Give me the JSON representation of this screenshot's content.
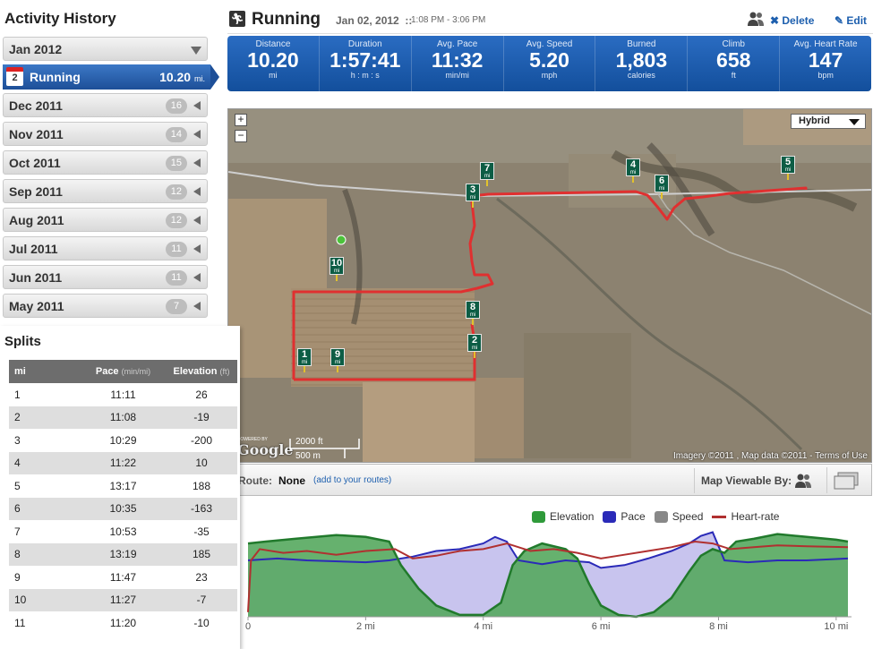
{
  "history": {
    "title": "Activity History",
    "selected_month": "Jan 2012",
    "selected_activity": {
      "day": "2",
      "name": "Running",
      "distance": "10.20",
      "unit": "mi."
    },
    "months": [
      {
        "label": "Dec 2011",
        "count": "16"
      },
      {
        "label": "Nov 2011",
        "count": "14"
      },
      {
        "label": "Oct 2011",
        "count": "15"
      },
      {
        "label": "Sep 2011",
        "count": "12"
      },
      {
        "label": "Aug 2011",
        "count": "12"
      },
      {
        "label": "Jul 2011",
        "count": "11"
      },
      {
        "label": "Jun 2011",
        "count": "11"
      },
      {
        "label": "May 2011",
        "count": "7"
      }
    ]
  },
  "splits": {
    "title": "Splits",
    "headers": {
      "mi": "mi",
      "pace": "Pace",
      "pace_unit": "(min/mi)",
      "elevation": "Elevation",
      "elevation_unit": "(ft)"
    },
    "rows": [
      {
        "mi": "1",
        "pace": "11:11",
        "elevation": "26"
      },
      {
        "mi": "2",
        "pace": "11:08",
        "elevation": "-19"
      },
      {
        "mi": "3",
        "pace": "10:29",
        "elevation": "-200"
      },
      {
        "mi": "4",
        "pace": "11:22",
        "elevation": "10"
      },
      {
        "mi": "5",
        "pace": "13:17",
        "elevation": "188"
      },
      {
        "mi": "6",
        "pace": "10:35",
        "elevation": "-163"
      },
      {
        "mi": "7",
        "pace": "10:53",
        "elevation": "-35"
      },
      {
        "mi": "8",
        "pace": "13:19",
        "elevation": "185"
      },
      {
        "mi": "9",
        "pace": "11:47",
        "elevation": "23"
      },
      {
        "mi": "10",
        "pace": "11:27",
        "elevation": "-7"
      },
      {
        "mi": "11",
        "pace": "11:20",
        "elevation": "-10"
      }
    ]
  },
  "header": {
    "title": "Running",
    "date": "Jan 02, 2012",
    "sep": "::",
    "time": "1:08 PM - 3:06 PM",
    "delete_label": "Delete",
    "edit_label": "Edit"
  },
  "stats": [
    {
      "label": "Distance",
      "value": "10.20",
      "unit": "mi"
    },
    {
      "label": "Duration",
      "value": "1:57:41",
      "unit": "h : m : s"
    },
    {
      "label": "Avg. Pace",
      "value": "11:32",
      "unit": "min/mi"
    },
    {
      "label": "Avg. Speed",
      "value": "5.20",
      "unit": "mph"
    },
    {
      "label": "Burned",
      "value": "1,803",
      "unit": "calories"
    },
    {
      "label": "Climb",
      "value": "658",
      "unit": "ft"
    },
    {
      "label": "Avg. Heart Rate",
      "value": "147",
      "unit": "bpm"
    }
  ],
  "map": {
    "type": "Hybrid",
    "attribution": "Imagery ©2011 , Map data ©2011 - Terms of Use",
    "powered": "POWERED BY",
    "google": "Google",
    "scale_ft": "2000 ft",
    "scale_m": "500 m",
    "marker_unit": "mi",
    "markers": [
      "1",
      "2",
      "3",
      "4",
      "5",
      "6",
      "7",
      "8",
      "9",
      "10"
    ],
    "route_color": "#e03030"
  },
  "route": {
    "label": "Route:",
    "value": "None",
    "add_link": "(add to your routes)",
    "viewable_label": "Map Viewable By:"
  },
  "chart_data": {
    "type": "area",
    "series": [
      {
        "name": "Elevation",
        "color": "#2f9a3a"
      },
      {
        "name": "Pace",
        "color": "#2a2ab8"
      },
      {
        "name": "Speed",
        "color": "#888888"
      },
      {
        "name": "Heart-rate",
        "color": "#b03030"
      }
    ],
    "xlabel": "",
    "xticks": [
      "0",
      "2 mi",
      "4 mi",
      "6 mi",
      "8 mi",
      "10 mi"
    ],
    "xlim": [
      0,
      10.2
    ],
    "elevation": {
      "x": [
        0,
        0.3,
        0.8,
        1.5,
        2.0,
        2.4,
        2.6,
        2.9,
        3.2,
        3.6,
        4.0,
        4.3,
        4.5,
        4.7,
        5.0,
        5.4,
        5.6,
        5.8,
        6.0,
        6.3,
        6.6,
        6.9,
        7.2,
        7.5,
        7.7,
        7.9,
        8.1,
        8.3,
        8.6,
        9.0,
        9.5,
        10.0,
        10.2
      ],
      "y": [
        0.78,
        0.8,
        0.83,
        0.87,
        0.85,
        0.8,
        0.55,
        0.3,
        0.12,
        0.02,
        0.02,
        0.15,
        0.55,
        0.7,
        0.78,
        0.72,
        0.62,
        0.35,
        0.12,
        0.02,
        0.0,
        0.05,
        0.2,
        0.48,
        0.65,
        0.72,
        0.68,
        0.8,
        0.83,
        0.88,
        0.85,
        0.82,
        0.8
      ]
    },
    "pace": {
      "x": [
        0,
        0.5,
        1.0,
        2.0,
        2.4,
        2.8,
        3.2,
        3.6,
        4.0,
        4.2,
        4.4,
        4.6,
        5.0,
        5.4,
        5.8,
        6.0,
        6.4,
        6.8,
        7.2,
        7.5,
        7.7,
        7.9,
        8.1,
        8.5,
        9.0,
        9.5,
        10.2
      ],
      "y": [
        0.6,
        0.62,
        0.6,
        0.58,
        0.6,
        0.64,
        0.7,
        0.72,
        0.78,
        0.85,
        0.8,
        0.6,
        0.56,
        0.6,
        0.58,
        0.52,
        0.55,
        0.62,
        0.7,
        0.78,
        0.86,
        0.9,
        0.6,
        0.58,
        0.6,
        0.6,
        0.62
      ]
    },
    "heart_rate": {
      "x": [
        0,
        0.05,
        0.2,
        0.6,
        1.0,
        1.5,
        2.0,
        2.5,
        2.8,
        3.2,
        3.6,
        4.0,
        4.4,
        4.8,
        5.2,
        5.6,
        6.0,
        6.4,
        6.8,
        7.2,
        7.6,
        7.9,
        8.2,
        8.6,
        9.0,
        9.5,
        10.2
      ],
      "y": [
        0.05,
        0.6,
        0.72,
        0.68,
        0.7,
        0.66,
        0.7,
        0.72,
        0.62,
        0.65,
        0.7,
        0.72,
        0.78,
        0.7,
        0.72,
        0.68,
        0.62,
        0.66,
        0.7,
        0.74,
        0.8,
        0.78,
        0.72,
        0.74,
        0.76,
        0.75,
        0.74
      ]
    }
  }
}
